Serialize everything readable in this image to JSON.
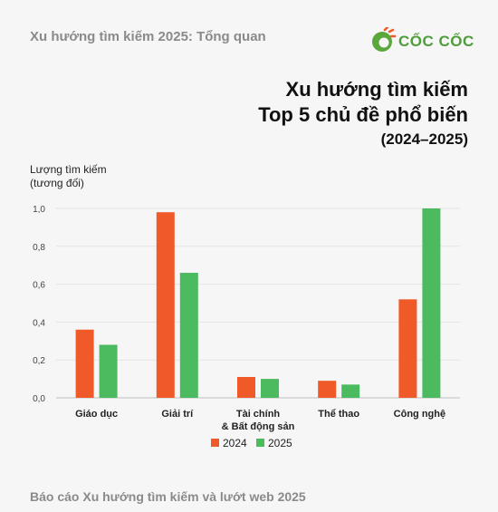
{
  "header": {
    "caption": "Xu hướng tìm kiếm 2025: Tổng quan",
    "brand": "CỐC CỐC",
    "logo_icon": "coccoc-logo-icon"
  },
  "footer": {
    "caption": "Báo cáo Xu hướng tìm kiếm và lướt web 2025"
  },
  "colors": {
    "series_2024": "#f05a28",
    "series_2025": "#4cbb5f",
    "logo_green": "#5aa83c",
    "logo_orange": "#f05a28"
  },
  "chart_data": {
    "type": "bar",
    "title_lines": [
      "Xu hướng tìm kiếm",
      "Top 5 chủ đề phổ biến",
      "(2024–2025)"
    ],
    "ylabel_lines": [
      "Lượng tìm kiếm",
      "(tương đối)"
    ],
    "xlabel": "",
    "ylim": [
      0,
      1.0
    ],
    "yticks": [
      "0,0",
      "0,2",
      "0,4",
      "0,6",
      "0,8",
      "1,0"
    ],
    "ytick_values": [
      0,
      0.2,
      0.4,
      0.6,
      0.8,
      1.0
    ],
    "grid": true,
    "legend_position": "bottom-center",
    "categories": [
      [
        "Giáo dục"
      ],
      [
        "Giải trí"
      ],
      [
        "Tài chính",
        "& Bất động sản"
      ],
      [
        "Thể thao"
      ],
      [
        "Công nghệ"
      ]
    ],
    "series": [
      {
        "name": "2024",
        "values": [
          0.36,
          0.98,
          0.11,
          0.09,
          0.52
        ]
      },
      {
        "name": "2025",
        "values": [
          0.28,
          0.66,
          0.1,
          0.07,
          1.0
        ]
      }
    ]
  }
}
